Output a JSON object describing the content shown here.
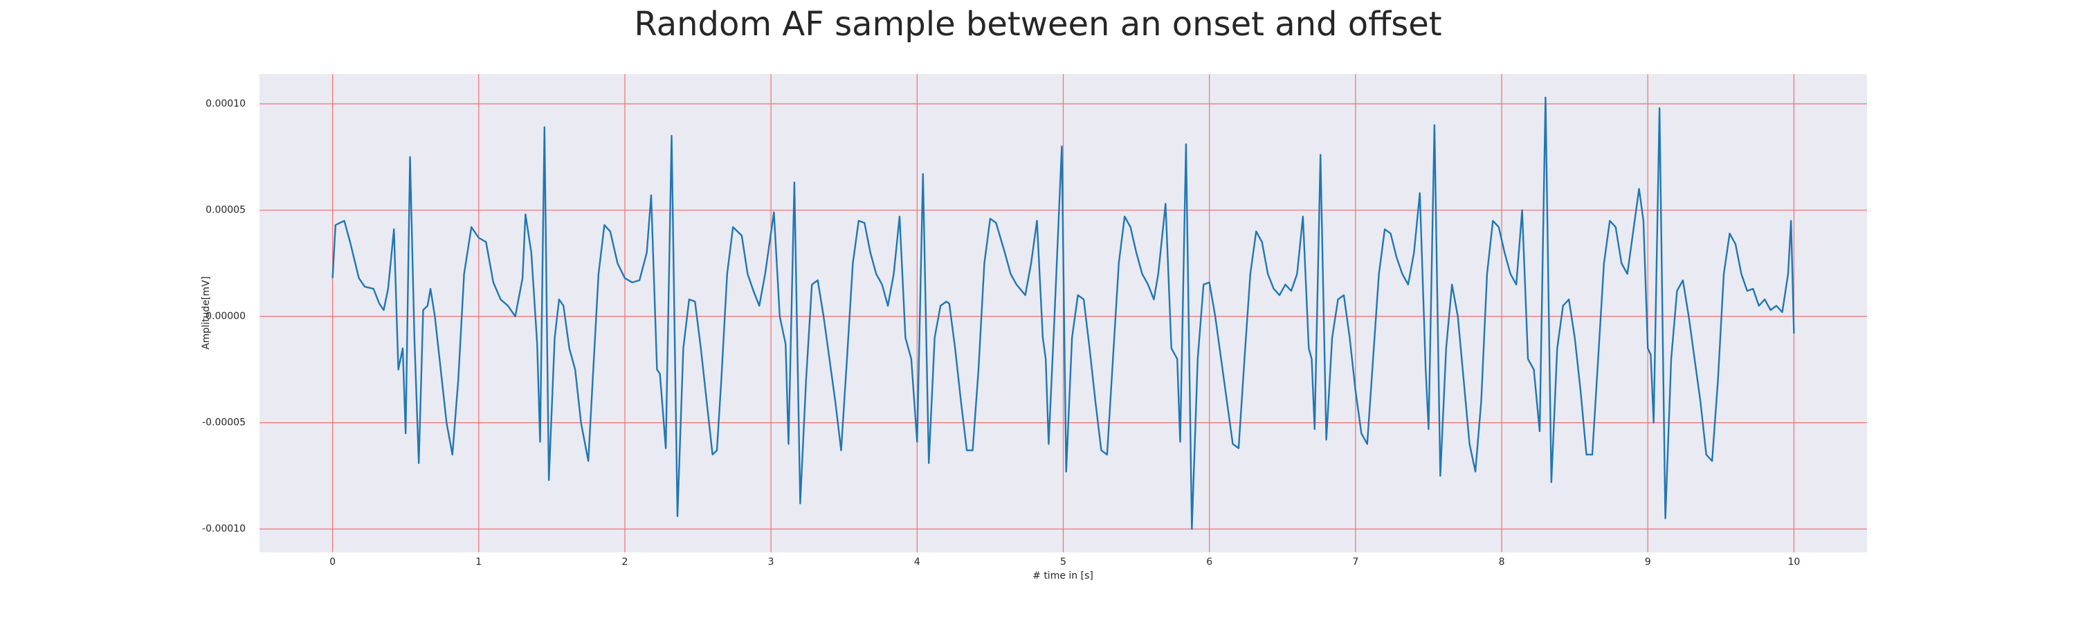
{
  "chart_data": {
    "type": "line",
    "title": "Random AF sample between an onset and offset",
    "x_label": "# time in [s]",
    "y_label": "Amplitude[mV]",
    "x": [
      0,
      0.02,
      0.08,
      0.12,
      0.18,
      0.22,
      0.28,
      0.32,
      0.35,
      0.38,
      0.42,
      0.45,
      0.48,
      0.5,
      0.53,
      0.56,
      0.59,
      0.62,
      0.65,
      0.67,
      0.7,
      0.74,
      0.78,
      0.82,
      0.86,
      0.9,
      0.95,
      1.0,
      1.05,
      1.1,
      1.15,
      1.2,
      1.25,
      1.3,
      1.32,
      1.36,
      1.4,
      1.42,
      1.45,
      1.48,
      1.52,
      1.55,
      1.58,
      1.62,
      1.66,
      1.7,
      1.75,
      1.78,
      1.82,
      1.86,
      1.9,
      1.95,
      2.0,
      2.05,
      2.1,
      2.15,
      2.18,
      2.22,
      2.24,
      2.28,
      2.32,
      2.36,
      2.4,
      2.44,
      2.48,
      2.52,
      2.56,
      2.6,
      2.63,
      2.66,
      2.7,
      2.74,
      2.8,
      2.84,
      2.88,
      2.92,
      2.96,
      3.02,
      3.06,
      3.1,
      3.12,
      3.16,
      3.2,
      3.24,
      3.28,
      3.32,
      3.36,
      3.4,
      3.44,
      3.48,
      3.52,
      3.56,
      3.6,
      3.64,
      3.68,
      3.72,
      3.76,
      3.8,
      3.84,
      3.88,
      3.92,
      3.96,
      4.0,
      4.04,
      4.08,
      4.12,
      4.16,
      4.2,
      4.22,
      4.26,
      4.3,
      4.34,
      4.38,
      4.42,
      4.46,
      4.5,
      4.54,
      4.6,
      4.64,
      4.68,
      4.74,
      4.78,
      4.82,
      4.86,
      4.88,
      4.9,
      4.94,
      4.99,
      5.02,
      5.06,
      5.1,
      5.14,
      5.18,
      5.22,
      5.26,
      5.3,
      5.34,
      5.38,
      5.42,
      5.46,
      5.5,
      5.54,
      5.58,
      5.62,
      5.65,
      5.7,
      5.74,
      5.78,
      5.8,
      5.84,
      5.88,
      5.92,
      5.96,
      6.0,
      6.04,
      6.08,
      6.12,
      6.16,
      6.2,
      6.24,
      6.28,
      6.32,
      6.36,
      6.4,
      6.44,
      6.48,
      6.52,
      6.56,
      6.6,
      6.64,
      6.68,
      6.7,
      6.72,
      6.76,
      6.8,
      6.84,
      6.88,
      6.92,
      6.96,
      7.0,
      7.04,
      7.08,
      7.12,
      7.16,
      7.2,
      7.24,
      7.28,
      7.32,
      7.36,
      7.4,
      7.44,
      7.48,
      7.5,
      7.54,
      7.58,
      7.62,
      7.66,
      7.7,
      7.74,
      7.78,
      7.82,
      7.86,
      7.9,
      7.94,
      7.98,
      8.02,
      8.06,
      8.1,
      8.14,
      8.18,
      8.22,
      8.26,
      8.3,
      8.34,
      8.38,
      8.42,
      8.46,
      8.5,
      8.54,
      8.58,
      8.62,
      8.66,
      8.7,
      8.74,
      8.78,
      8.82,
      8.86,
      8.9,
      8.94,
      8.97,
      9.0,
      9.02,
      9.04,
      9.08,
      9.12,
      9.16,
      9.2,
      9.24,
      9.28,
      9.32,
      9.36,
      9.4,
      9.44,
      9.48,
      9.52,
      9.56,
      9.6,
      9.64,
      9.68,
      9.72,
      9.76,
      9.8,
      9.84,
      9.88,
      9.92,
      9.96,
      9.98,
      10.0
    ],
    "series": [
      {
        "color": "#1f77b4",
        "values": [
          1.8e-05,
          4.3e-05,
          4.5e-05,
          3.5e-05,
          1.8e-05,
          1.4e-05,
          1.3e-05,
          6e-06,
          3e-06,
          1.3e-05,
          4.1e-05,
          -2.5e-05,
          -1.5e-05,
          -5.5e-05,
          7.5e-05,
          -1e-05,
          -6.9e-05,
          3e-06,
          5e-06,
          1.3e-05,
          0,
          -2.5e-05,
          -5e-05,
          -6.5e-05,
          -3e-05,
          2e-05,
          4.2e-05,
          3.7e-05,
          3.5e-05,
          1.6e-05,
          8e-06,
          5e-06,
          0,
          1.8e-05,
          4.8e-05,
          3e-05,
          -1.3e-05,
          -5.9e-05,
          8.9e-05,
          -7.7e-05,
          -1e-05,
          8e-06,
          5e-06,
          -1.5e-05,
          -2.5e-05,
          -5e-05,
          -6.8e-05,
          -3e-05,
          2e-05,
          4.3e-05,
          4e-05,
          2.5e-05,
          1.8e-05,
          1.6e-05,
          1.7e-05,
          3e-05,
          5.7e-05,
          -2.5e-05,
          -2.7e-05,
          -6.2e-05,
          8.5e-05,
          -9.4e-05,
          -1.5e-05,
          8e-06,
          7e-06,
          -1.5e-05,
          -4e-05,
          -6.5e-05,
          -6.3e-05,
          -3e-05,
          2e-05,
          4.2e-05,
          3.8e-05,
          2e-05,
          1.2e-05,
          5e-06,
          2e-05,
          4.9e-05,
          0,
          -1.3e-05,
          -6e-05,
          6.3e-05,
          -8.8e-05,
          -3e-05,
          1.5e-05,
          1.7e-05,
          0,
          -2e-05,
          -4e-05,
          -6.3e-05,
          -2e-05,
          2.5e-05,
          4.5e-05,
          4.4e-05,
          3e-05,
          2e-05,
          1.5e-05,
          5e-06,
          2e-05,
          4.7e-05,
          -1e-05,
          -2e-05,
          -5.9e-05,
          6.7e-05,
          -6.9e-05,
          -1e-05,
          5e-06,
          7e-06,
          6e-06,
          -1.5e-05,
          -4e-05,
          -6.3e-05,
          -6.3e-05,
          -2.5e-05,
          2.5e-05,
          4.6e-05,
          4.4e-05,
          3e-05,
          2e-05,
          1.5e-05,
          1e-05,
          2.5e-05,
          4.5e-05,
          -1e-05,
          -2e-05,
          -6e-05,
          0,
          8e-05,
          -7.3e-05,
          -1e-05,
          1e-05,
          8e-06,
          -1.5e-05,
          -4e-05,
          -6.3e-05,
          -6.5e-05,
          -2e-05,
          2.5e-05,
          4.7e-05,
          4.2e-05,
          3e-05,
          2e-05,
          1.5e-05,
          8e-06,
          2e-05,
          5.3e-05,
          -1.5e-05,
          -2e-05,
          -5.9e-05,
          8.1e-05,
          -0.0001,
          -2e-05,
          1.5e-05,
          1.6e-05,
          0,
          -2e-05,
          -4e-05,
          -6e-05,
          -6.2e-05,
          -2e-05,
          2e-05,
          4e-05,
          3.5e-05,
          2e-05,
          1.3e-05,
          1e-05,
          1.5e-05,
          1.2e-05,
          2e-05,
          4.7e-05,
          -1.5e-05,
          -2e-05,
          -5.3e-05,
          7.6e-05,
          -5.8e-05,
          -1e-05,
          8e-06,
          1e-05,
          -1e-05,
          -3.5e-05,
          -5.5e-05,
          -6e-05,
          -2e-05,
          2e-05,
          4.1e-05,
          3.9e-05,
          2.8e-05,
          2e-05,
          1.5e-05,
          3e-05,
          5.8e-05,
          -2.5e-05,
          -5.3e-05,
          9e-05,
          -7.5e-05,
          -1.5e-05,
          1.5e-05,
          0,
          -3e-05,
          -6e-05,
          -7.3e-05,
          -4e-05,
          2e-05,
          4.5e-05,
          4.2e-05,
          3e-05,
          2e-05,
          1.5e-05,
          5e-05,
          -2e-05,
          -2.5e-05,
          -5.4e-05,
          0.000103,
          -7.8e-05,
          -1.5e-05,
          5e-06,
          8e-06,
          -1e-05,
          -3.5e-05,
          -6.5e-05,
          -6.5e-05,
          -2e-05,
          2.5e-05,
          4.5e-05,
          4.2e-05,
          2.5e-05,
          2e-05,
          4e-05,
          6e-05,
          4.5e-05,
          -1.5e-05,
          -1.8e-05,
          -5e-05,
          9.8e-05,
          -9.5e-05,
          -2e-05,
          1.2e-05,
          1.7e-05,
          0,
          -2e-05,
          -4e-05,
          -6.5e-05,
          -6.8e-05,
          -3e-05,
          2e-05,
          3.9e-05,
          3.4e-05,
          2e-05,
          1.2e-05,
          1.3e-05,
          5e-06,
          8e-06,
          3e-06,
          5e-06,
          2e-06,
          2e-05,
          4.5e-05,
          -8e-06
        ]
      }
    ],
    "xlim": [
      -0.5,
      10.5
    ],
    "ylim": [
      -0.000111,
      0.000114
    ],
    "xticks": [
      0,
      1,
      2,
      3,
      4,
      5,
      6,
      7,
      8,
      9,
      10
    ],
    "yticks": [
      {
        "value": -0.0001,
        "label": "-0.00010"
      },
      {
        "value": -5e-05,
        "label": "-0.00005"
      },
      {
        "value": 0,
        "label": "0.00000"
      },
      {
        "value": 5e-05,
        "label": "0.00005"
      },
      {
        "value": 0.0001,
        "label": "0.00010"
      }
    ],
    "grid": true,
    "grid_color": "#f07070",
    "plot_background": "#eaeaf2"
  }
}
